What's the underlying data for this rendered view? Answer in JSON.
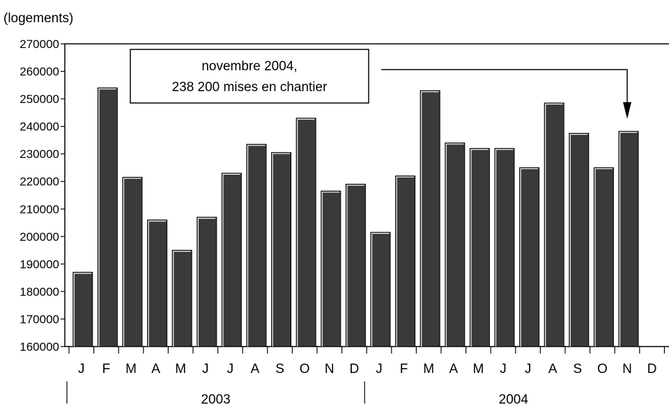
{
  "unit_label": "(logements)",
  "annotation": {
    "line1": "novembre 2004,",
    "line2": "238 200 mises en chantier",
    "target_index": 22
  },
  "chart_data": {
    "type": "bar",
    "ylabel": "(logements)",
    "ylim": [
      160000,
      270000
    ],
    "yticks": [
      160000,
      170000,
      180000,
      190000,
      200000,
      210000,
      220000,
      230000,
      240000,
      250000,
      260000,
      270000
    ],
    "categories": [
      "J",
      "F",
      "M",
      "A",
      "M",
      "J",
      "J",
      "A",
      "S",
      "O",
      "N",
      "D",
      "J",
      "F",
      "M",
      "A",
      "M",
      "J",
      "J",
      "A",
      "S",
      "O",
      "N",
      "D"
    ],
    "groups": [
      {
        "label": "2003",
        "start": 0,
        "end": 11
      },
      {
        "label": "2004",
        "start": 12,
        "end": 23
      }
    ],
    "values": [
      187000,
      254000,
      221500,
      206000,
      195000,
      207000,
      223000,
      233500,
      230500,
      243000,
      216500,
      219000,
      201500,
      222000,
      253000,
      234000,
      232000,
      232000,
      225000,
      248500,
      237500,
      225000,
      238200,
      null
    ],
    "bar_color": "#3a3a3a"
  }
}
